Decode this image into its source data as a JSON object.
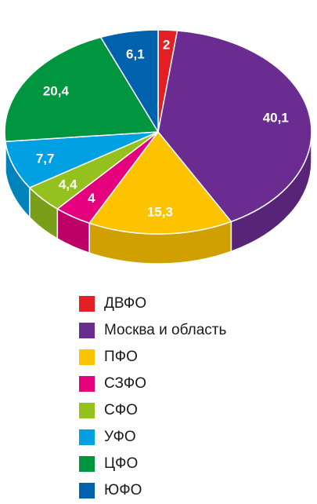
{
  "chart_data": {
    "type": "pie",
    "title": "",
    "slices": [
      {
        "label": "ДВФО",
        "value": 2,
        "value_label": "2",
        "color": "#e31e24"
      },
      {
        "label": "Москва и область",
        "value": 40.1,
        "value_label": "40,1",
        "color": "#6a2c91"
      },
      {
        "label": "ПФО",
        "value": 15.3,
        "value_label": "15,3",
        "color": "#fdc300"
      },
      {
        "label": "СЗФО",
        "value": 4,
        "value_label": "4",
        "color": "#e5007e"
      },
      {
        "label": "СФО",
        "value": 4.4,
        "value_label": "4,4",
        "color": "#95c11f"
      },
      {
        "label": "УФО",
        "value": 7.7,
        "value_label": "7,7",
        "color": "#00a0e3"
      },
      {
        "label": "ЦФО",
        "value": 20.4,
        "value_label": "20,4",
        "color": "#009640"
      },
      {
        "label": "ЮФО",
        "value": 6.1,
        "value_label": "6,1",
        "color": "#0061ac"
      }
    ],
    "legend_position": "bottom-left",
    "style": "3d"
  }
}
